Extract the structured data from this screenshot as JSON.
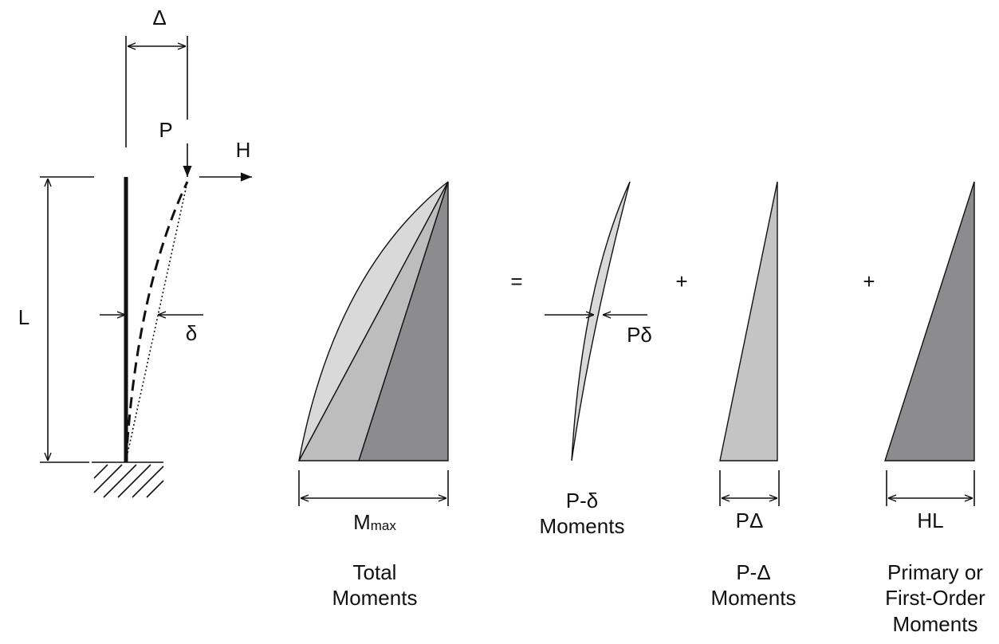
{
  "column": {
    "drift": "Δ",
    "load": "P",
    "lateral": "H",
    "length": "L",
    "deflection": "δ"
  },
  "operators": [
    "=",
    "+",
    "+"
  ],
  "diagrams": [
    {
      "dimension": "M",
      "dimension_sub": "max",
      "caption": [
        "Total",
        "Moments"
      ]
    },
    {
      "marker": "Pδ",
      "caption": [
        "P-δ",
        "Moments"
      ]
    },
    {
      "dimension": "PΔ",
      "caption": [
        "P-Δ",
        "Moments"
      ]
    },
    {
      "dimension": "HL",
      "caption": [
        "Primary or",
        "First-Order",
        "Moments"
      ]
    }
  ]
}
